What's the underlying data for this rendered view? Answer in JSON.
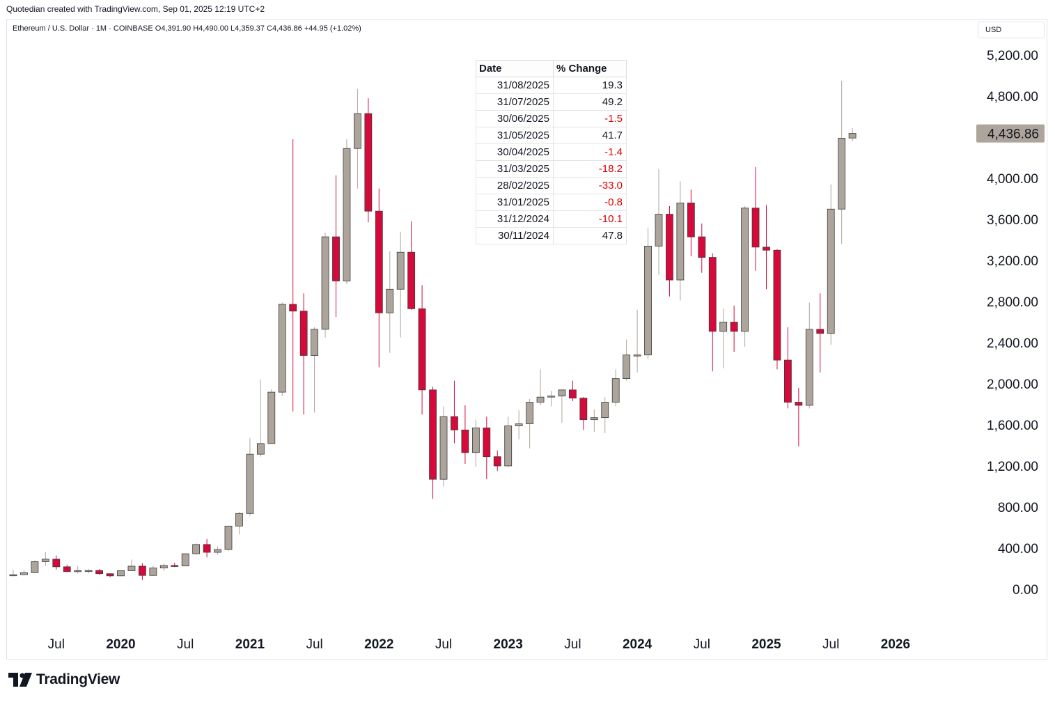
{
  "caption": "Quotedian created with TradingView.com, Sep 01, 2025 12:19 UTC+2",
  "symbol_line": "Ethereum / U.S. Dollar · 1M · COINBASE  O4,391.90  H4,490.00  L4,359.37  C4,436.86  +44.95 (+1.02%)",
  "currency": "USD",
  "logo_text": "TradingView",
  "colors": {
    "up": "#ada59b",
    "down": "#d50a3b",
    "last_price_bg": "#ada59b",
    "grid": "#ffffff",
    "axis_text": "#131722"
  },
  "table": {
    "headers": [
      "Date",
      "% Change"
    ],
    "rows": [
      {
        "date": "31/08/2025",
        "change": "19.3",
        "negative": false
      },
      {
        "date": "31/07/2025",
        "change": "49.2",
        "negative": false
      },
      {
        "date": "30/06/2025",
        "change": "-1.5",
        "negative": true
      },
      {
        "date": "31/05/2025",
        "change": "41.7",
        "negative": false
      },
      {
        "date": "30/04/2025",
        "change": "-1.4",
        "negative": true
      },
      {
        "date": "31/03/2025",
        "change": "-18.2",
        "negative": true
      },
      {
        "date": "28/02/2025",
        "change": "-33.0",
        "negative": true
      },
      {
        "date": "31/01/2025",
        "change": "-0.8",
        "negative": true
      },
      {
        "date": "31/12/2024",
        "change": "-10.1",
        "negative": true
      },
      {
        "date": "30/11/2024",
        "change": "47.8",
        "negative": false
      }
    ]
  },
  "chart_data": {
    "type": "candlestick",
    "title": "Ethereum / U.S. Dollar · 1M · COINBASE",
    "ylim": [
      -300,
      5500
    ],
    "y_ticks": [
      0,
      400,
      800,
      1200,
      1600,
      2000,
      2400,
      2800,
      3200,
      3600,
      4000,
      4800,
      5200
    ],
    "y_tick_labels": [
      "0.00",
      "400.00",
      "800.00",
      "1,200.00",
      "1,600.00",
      "2,000.00",
      "2,400.00",
      "2,800.00",
      "3,200.00",
      "3,600.00",
      "4,000.00",
      "4,800.00",
      "5,200.00"
    ],
    "x_ticks": [
      {
        "label": "Jul",
        "month": "2019-07",
        "bold": false
      },
      {
        "label": "2020",
        "month": "2020-01",
        "bold": true
      },
      {
        "label": "Jul",
        "month": "2020-07",
        "bold": false
      },
      {
        "label": "2021",
        "month": "2021-01",
        "bold": true
      },
      {
        "label": "Jul",
        "month": "2021-07",
        "bold": false
      },
      {
        "label": "2022",
        "month": "2022-01",
        "bold": true
      },
      {
        "label": "Jul",
        "month": "2022-07",
        "bold": false
      },
      {
        "label": "2023",
        "month": "2023-01",
        "bold": true
      },
      {
        "label": "Jul",
        "month": "2023-07",
        "bold": false
      },
      {
        "label": "2024",
        "month": "2024-01",
        "bold": true
      },
      {
        "label": "Jul",
        "month": "2024-07",
        "bold": false
      },
      {
        "label": "2025",
        "month": "2025-01",
        "bold": true
      },
      {
        "label": "Jul",
        "month": "2025-07",
        "bold": false
      },
      {
        "label": "2026",
        "month": "2026-01",
        "bold": true
      }
    ],
    "last_price": 4436.86,
    "last_price_label": "4,436.86",
    "candles": [
      {
        "date": "2019-03",
        "o": 137,
        "h": 186,
        "l": 125,
        "c": 141
      },
      {
        "date": "2019-04",
        "o": 141,
        "h": 185,
        "l": 133,
        "c": 161
      },
      {
        "date": "2019-05",
        "o": 161,
        "h": 280,
        "l": 158,
        "c": 268
      },
      {
        "date": "2019-06",
        "o": 268,
        "h": 361,
        "l": 227,
        "c": 292
      },
      {
        "date": "2019-07",
        "o": 292,
        "h": 328,
        "l": 190,
        "c": 218
      },
      {
        "date": "2019-08",
        "o": 218,
        "h": 238,
        "l": 165,
        "c": 171
      },
      {
        "date": "2019-09",
        "o": 171,
        "h": 224,
        "l": 153,
        "c": 181
      },
      {
        "date": "2019-10",
        "o": 181,
        "h": 197,
        "l": 153,
        "c": 182
      },
      {
        "date": "2019-11",
        "o": 182,
        "h": 194,
        "l": 141,
        "c": 151
      },
      {
        "date": "2019-12",
        "o": 151,
        "h": 152,
        "l": 117,
        "c": 130
      },
      {
        "date": "2020-01",
        "o": 130,
        "h": 184,
        "l": 126,
        "c": 180
      },
      {
        "date": "2020-02",
        "o": 180,
        "h": 288,
        "l": 182,
        "c": 224
      },
      {
        "date": "2020-03",
        "o": 224,
        "h": 253,
        "l": 90,
        "c": 134
      },
      {
        "date": "2020-04",
        "o": 134,
        "h": 227,
        "l": 130,
        "c": 206
      },
      {
        "date": "2020-05",
        "o": 206,
        "h": 249,
        "l": 177,
        "c": 231
      },
      {
        "date": "2020-06",
        "o": 231,
        "h": 256,
        "l": 216,
        "c": 226
      },
      {
        "date": "2020-07",
        "o": 226,
        "h": 349,
        "l": 224,
        "c": 345
      },
      {
        "date": "2020-08",
        "o": 345,
        "h": 446,
        "l": 335,
        "c": 435
      },
      {
        "date": "2020-09",
        "o": 435,
        "h": 488,
        "l": 310,
        "c": 359
      },
      {
        "date": "2020-10",
        "o": 359,
        "h": 418,
        "l": 335,
        "c": 386
      },
      {
        "date": "2020-11",
        "o": 386,
        "h": 620,
        "l": 372,
        "c": 614
      },
      {
        "date": "2020-12",
        "o": 614,
        "h": 752,
        "l": 535,
        "c": 737
      },
      {
        "date": "2021-01",
        "o": 737,
        "h": 1470,
        "l": 715,
        "c": 1314
      },
      {
        "date": "2021-02",
        "o": 1314,
        "h": 2040,
        "l": 1290,
        "c": 1418
      },
      {
        "date": "2021-03",
        "o": 1418,
        "h": 1945,
        "l": 1450,
        "c": 1918
      },
      {
        "date": "2021-04",
        "o": 1918,
        "h": 2790,
        "l": 1880,
        "c": 2773
      },
      {
        "date": "2021-05",
        "o": 2773,
        "h": 4380,
        "l": 1730,
        "c": 2707
      },
      {
        "date": "2021-06",
        "o": 2707,
        "h": 2880,
        "l": 1700,
        "c": 2275
      },
      {
        "date": "2021-07",
        "o": 2275,
        "h": 2550,
        "l": 1720,
        "c": 2530
      },
      {
        "date": "2021-08",
        "o": 2530,
        "h": 3470,
        "l": 2450,
        "c": 3430
      },
      {
        "date": "2021-09",
        "o": 3430,
        "h": 4030,
        "l": 2650,
        "c": 3000
      },
      {
        "date": "2021-10",
        "o": 3000,
        "h": 4380,
        "l": 2970,
        "c": 4290
      },
      {
        "date": "2021-11",
        "o": 4290,
        "h": 4870,
        "l": 3900,
        "c": 4630
      },
      {
        "date": "2021-12",
        "o": 4630,
        "h": 4780,
        "l": 3570,
        "c": 3680
      },
      {
        "date": "2022-01",
        "o": 3680,
        "h": 3900,
        "l": 2160,
        "c": 2690
      },
      {
        "date": "2022-02",
        "o": 2690,
        "h": 3290,
        "l": 2300,
        "c": 2920
      },
      {
        "date": "2022-03",
        "o": 2920,
        "h": 3480,
        "l": 2450,
        "c": 3280
      },
      {
        "date": "2022-04",
        "o": 3280,
        "h": 3580,
        "l": 2720,
        "c": 2730
      },
      {
        "date": "2022-05",
        "o": 2730,
        "h": 2960,
        "l": 1700,
        "c": 1940
      },
      {
        "date": "2022-06",
        "o": 1940,
        "h": 1970,
        "l": 880,
        "c": 1070
      },
      {
        "date": "2022-07",
        "o": 1070,
        "h": 1780,
        "l": 1000,
        "c": 1680
      },
      {
        "date": "2022-08",
        "o": 1680,
        "h": 2030,
        "l": 1420,
        "c": 1550
      },
      {
        "date": "2022-09",
        "o": 1550,
        "h": 1790,
        "l": 1220,
        "c": 1330
      },
      {
        "date": "2022-10",
        "o": 1330,
        "h": 1650,
        "l": 1190,
        "c": 1570
      },
      {
        "date": "2022-11",
        "o": 1570,
        "h": 1680,
        "l": 1070,
        "c": 1290
      },
      {
        "date": "2022-12",
        "o": 1290,
        "h": 1350,
        "l": 1150,
        "c": 1200
      },
      {
        "date": "2023-01",
        "o": 1200,
        "h": 1680,
        "l": 1190,
        "c": 1590
      },
      {
        "date": "2023-02",
        "o": 1590,
        "h": 1740,
        "l": 1460,
        "c": 1610
      },
      {
        "date": "2023-03",
        "o": 1610,
        "h": 1850,
        "l": 1370,
        "c": 1820
      },
      {
        "date": "2023-04",
        "o": 1820,
        "h": 2140,
        "l": 1790,
        "c": 1870
      },
      {
        "date": "2023-05",
        "o": 1870,
        "h": 1930,
        "l": 1780,
        "c": 1880
      },
      {
        "date": "2023-06",
        "o": 1880,
        "h": 1930,
        "l": 1620,
        "c": 1940
      },
      {
        "date": "2023-07",
        "o": 1940,
        "h": 2030,
        "l": 1830,
        "c": 1860
      },
      {
        "date": "2023-08",
        "o": 1860,
        "h": 1870,
        "l": 1550,
        "c": 1650
      },
      {
        "date": "2023-09",
        "o": 1650,
        "h": 1750,
        "l": 1530,
        "c": 1670
      },
      {
        "date": "2023-10",
        "o": 1670,
        "h": 1870,
        "l": 1520,
        "c": 1820
      },
      {
        "date": "2023-11",
        "o": 1820,
        "h": 2140,
        "l": 1780,
        "c": 2050
      },
      {
        "date": "2023-12",
        "o": 2050,
        "h": 2430,
        "l": 2030,
        "c": 2280
      },
      {
        "date": "2024-01",
        "o": 2280,
        "h": 2720,
        "l": 2110,
        "c": 2280
      },
      {
        "date": "2024-02",
        "o": 2280,
        "h": 3520,
        "l": 2240,
        "c": 3340
      },
      {
        "date": "2024-03",
        "o": 3340,
        "h": 4090,
        "l": 3060,
        "c": 3650
      },
      {
        "date": "2024-04",
        "o": 3650,
        "h": 3730,
        "l": 2850,
        "c": 3010
      },
      {
        "date": "2024-05",
        "o": 3010,
        "h": 3970,
        "l": 2810,
        "c": 3760
      },
      {
        "date": "2024-06",
        "o": 3760,
        "h": 3890,
        "l": 3240,
        "c": 3430
      },
      {
        "date": "2024-07",
        "o": 3430,
        "h": 3560,
        "l": 3080,
        "c": 3230
      },
      {
        "date": "2024-08",
        "o": 3230,
        "h": 3270,
        "l": 2120,
        "c": 2510
      },
      {
        "date": "2024-09",
        "o": 2510,
        "h": 2730,
        "l": 2150,
        "c": 2600
      },
      {
        "date": "2024-10",
        "o": 2600,
        "h": 2760,
        "l": 2310,
        "c": 2510
      },
      {
        "date": "2024-11",
        "o": 2510,
        "h": 3730,
        "l": 2360,
        "c": 3710
      },
      {
        "date": "2024-12",
        "o": 3710,
        "h": 4110,
        "l": 3100,
        "c": 3330
      },
      {
        "date": "2025-01",
        "o": 3330,
        "h": 3740,
        "l": 2920,
        "c": 3300
      },
      {
        "date": "2025-02",
        "o": 3300,
        "h": 3310,
        "l": 2140,
        "c": 2230
      },
      {
        "date": "2025-03",
        "o": 2230,
        "h": 2550,
        "l": 1760,
        "c": 1820
      },
      {
        "date": "2025-04",
        "o": 1820,
        "h": 1960,
        "l": 1390,
        "c": 1790
      },
      {
        "date": "2025-05",
        "o": 1790,
        "h": 2790,
        "l": 1760,
        "c": 2530
      },
      {
        "date": "2025-06",
        "o": 2530,
        "h": 2880,
        "l": 2110,
        "c": 2490
      },
      {
        "date": "2025-07",
        "o": 2490,
        "h": 3940,
        "l": 2380,
        "c": 3700
      },
      {
        "date": "2025-08",
        "o": 3700,
        "h": 4950,
        "l": 3360,
        "c": 4390
      },
      {
        "date": "2025-09",
        "o": 4391.9,
        "h": 4490.0,
        "l": 4359.37,
        "c": 4436.86
      }
    ]
  }
}
